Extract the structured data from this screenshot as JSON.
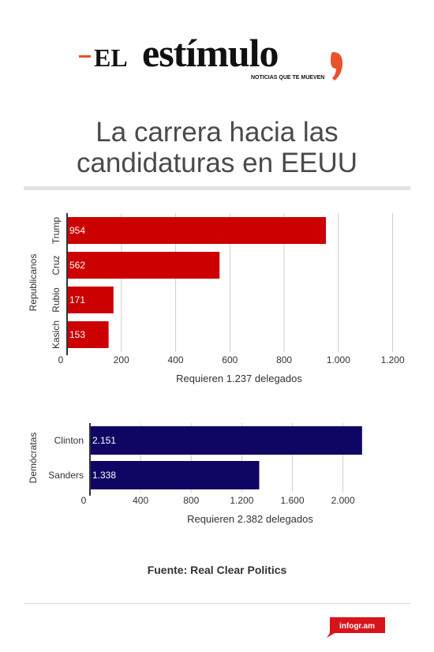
{
  "brand": {
    "prefix": "EL",
    "name": "estímulo",
    "tagline": "NOTICIAS QUE TE MUEVEN",
    "accent": "#e8532b"
  },
  "title_line1": "La carrera hacia las",
  "title_line2": "candidaturas en EEUU",
  "source": "Fuente: Real Clear Politics",
  "badge": "infogr.am",
  "chart_data": [
    {
      "type": "bar",
      "orientation": "horizontal",
      "group_label": "Republicanos",
      "categories": [
        "Trump",
        "Cruz",
        "Rubio",
        "Kasich"
      ],
      "values": [
        954,
        562,
        171,
        153
      ],
      "value_labels": [
        "954",
        "562",
        "171",
        "153"
      ],
      "color": "#cc0000",
      "xlabel": "Requieren 1.237 delegados",
      "xlim": [
        0,
        1200
      ],
      "ticks": [
        0,
        200,
        400,
        600,
        800,
        1000,
        1200
      ],
      "tick_labels": [
        "0",
        "200",
        "400",
        "600",
        "800",
        "1.000",
        "1.200"
      ],
      "grid": true
    },
    {
      "type": "bar",
      "orientation": "horizontal",
      "group_label": "Demócratas",
      "categories": [
        "Clinton",
        "Sanders"
      ],
      "values": [
        2151,
        1338
      ],
      "value_labels": [
        "2.151",
        "1.338"
      ],
      "color": "#0f0563",
      "xlabel": "Requieren 2.382 delegados",
      "xlim": [
        0,
        2000
      ],
      "ticks": [
        0,
        400,
        800,
        1200,
        1600,
        2000
      ],
      "tick_labels": [
        "0",
        "400",
        "800",
        "1.200",
        "1.600",
        "2.000"
      ],
      "grid": true
    }
  ]
}
